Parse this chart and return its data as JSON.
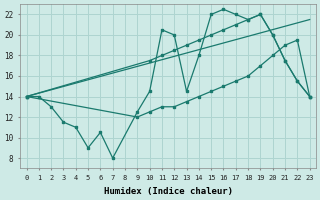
{
  "background_color": "#ceeae6",
  "grid_color": "#aed4d0",
  "line_color": "#1a7a6e",
  "xlabel": "Humidex (Indice chaleur)",
  "xlim": [
    -0.5,
    23.5
  ],
  "ylim": [
    7,
    23
  ],
  "xtick_labels": [
    "0",
    "1",
    "2",
    "3",
    "4",
    "5",
    "6",
    "7",
    "8",
    "9",
    "10",
    "11",
    "12",
    "13",
    "14",
    "15",
    "16",
    "17",
    "18",
    "19",
    "20",
    "21",
    "22",
    "23"
  ],
  "ytick_values": [
    8,
    10,
    12,
    14,
    16,
    18,
    20,
    22
  ],
  "series1_x": [
    0,
    1,
    2,
    3,
    4,
    5,
    6,
    7,
    9,
    10,
    11,
    12,
    13,
    14,
    15,
    16,
    17,
    18,
    19,
    20,
    21,
    22,
    23
  ],
  "series1_y": [
    14,
    14,
    13,
    11.5,
    11,
    9,
    10.5,
    8,
    12.5,
    14.5,
    20.5,
    20,
    14.5,
    18,
    22,
    22.5,
    22,
    21.5,
    22,
    20,
    17.5,
    15.5,
    14
  ],
  "series2_x": [
    0,
    10,
    11,
    12,
    13,
    14,
    15,
    16,
    17,
    18,
    19,
    20,
    21,
    22,
    23
  ],
  "series2_y": [
    14,
    17.5,
    18,
    18.5,
    19,
    19.5,
    20,
    20.5,
    21,
    21.5,
    22,
    20,
    17.5,
    15.5,
    14
  ],
  "series3_x": [
    0,
    23
  ],
  "series3_y": [
    14,
    21.5
  ],
  "series4_x": [
    0,
    9,
    10,
    11,
    12,
    13,
    14,
    15,
    16,
    17,
    18,
    19,
    20,
    21,
    22,
    23
  ],
  "series4_y": [
    14,
    12,
    12.5,
    13,
    13,
    13.5,
    14,
    14.5,
    15,
    15.5,
    16,
    17,
    18,
    19,
    19.5,
    14
  ]
}
